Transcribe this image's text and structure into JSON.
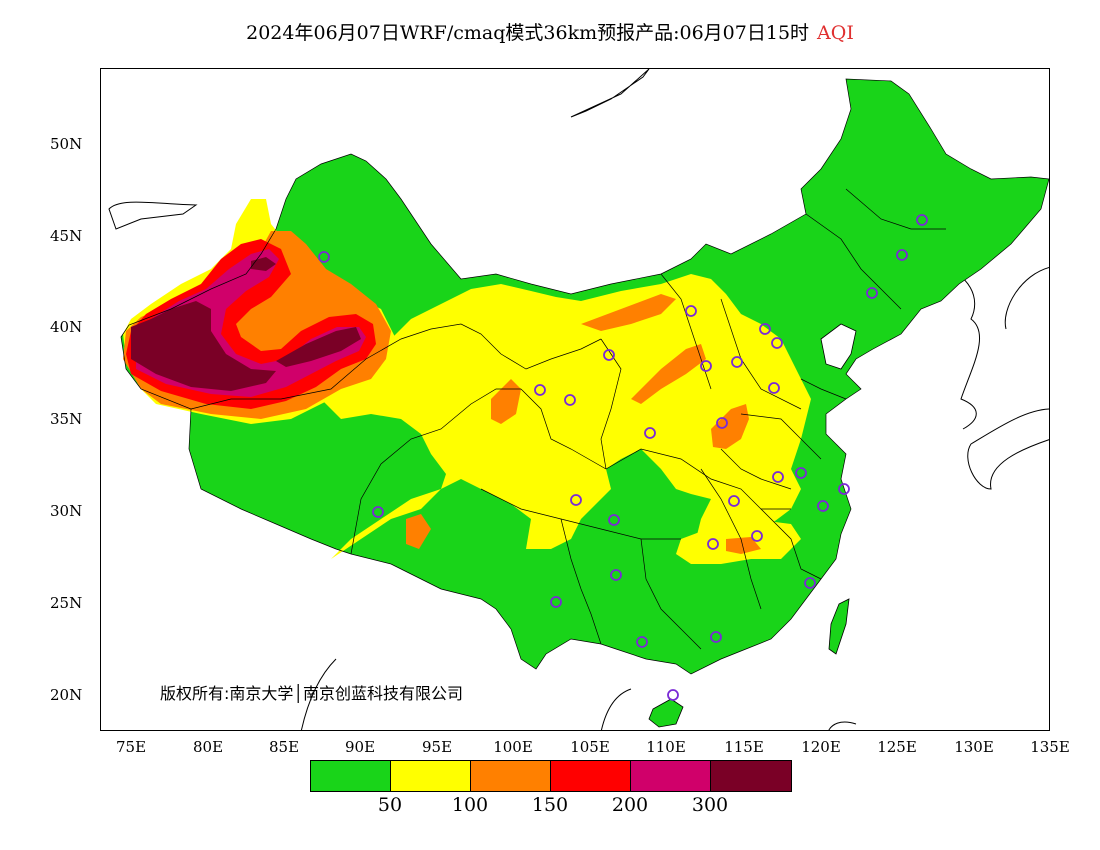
{
  "title": {
    "main": "2024年06月07日WRF/cmaq模式36km预报产品:06月07日15时",
    "variable": "AQI"
  },
  "axes": {
    "lat_labels": [
      "50N",
      "45N",
      "40N",
      "35N",
      "30N",
      "25N",
      "20N"
    ],
    "lon_labels": [
      "75E",
      "80E",
      "85E",
      "90E",
      "95E",
      "100E",
      "105E",
      "110E",
      "115E",
      "120E",
      "125E",
      "130E",
      "135E"
    ]
  },
  "copyright": "版权所有:南京大学│南京创蓝科技有限公司",
  "legend": {
    "colors": [
      "#19d419",
      "#ffff00",
      "#ff8000",
      "#ff0000",
      "#d0006a",
      "#7a0026"
    ],
    "labels": [
      "50",
      "100",
      "150",
      "200",
      "300"
    ]
  },
  "stations_count_note": "",
  "colors": {
    "good": "#19d419",
    "moderate": "#ffff00",
    "usg": "#ff8000",
    "unhealthy": "#ff0000",
    "very_unhealthy": "#d0006a",
    "hazardous": "#7a0026",
    "station": "#7a2ad6"
  }
}
